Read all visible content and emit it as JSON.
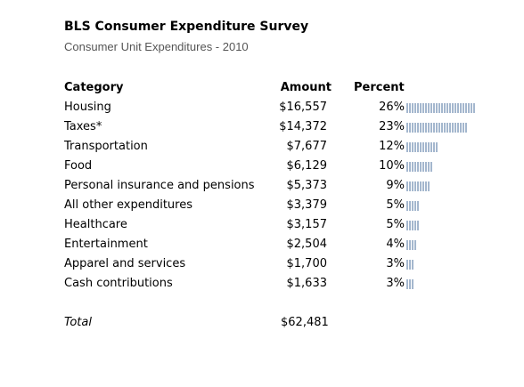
{
  "chart_data": {
    "type": "table",
    "title": "BLS Consumer Expenditure Survey",
    "subtitle": "Consumer Unit Expenditures - 2010",
    "columns": [
      "Category",
      "Amount",
      "Percent"
    ],
    "rows": [
      {
        "category": "Housing",
        "amount": "$16,557",
        "percent": "26%",
        "value": 26
      },
      {
        "category": "Taxes*",
        "amount": "$14,372",
        "percent": "23%",
        "value": 23
      },
      {
        "category": "Transportation",
        "amount": "$7,677",
        "percent": "12%",
        "value": 12
      },
      {
        "category": "Food",
        "amount": "$6,129",
        "percent": "10%",
        "value": 10
      },
      {
        "category": "Personal insurance and pensions",
        "amount": "$5,373",
        "percent": "9%",
        "value": 9
      },
      {
        "category": "All other expenditures",
        "amount": "$3,379",
        "percent": "5%",
        "value": 5
      },
      {
        "category": "Healthcare",
        "amount": "$3,157",
        "percent": "5%",
        "value": 5
      },
      {
        "category": "Entertainment",
        "amount": "$2,504",
        "percent": "4%",
        "value": 4
      },
      {
        "category": "Apparel and services",
        "amount": "$1,700",
        "percent": "3%",
        "value": 3
      },
      {
        "category": "Cash contributions",
        "amount": "$1,633",
        "percent": "3%",
        "value": 3
      }
    ],
    "total": {
      "label": "Total",
      "amount": "$62,481"
    },
    "bar_color": "#4a6f9c"
  }
}
